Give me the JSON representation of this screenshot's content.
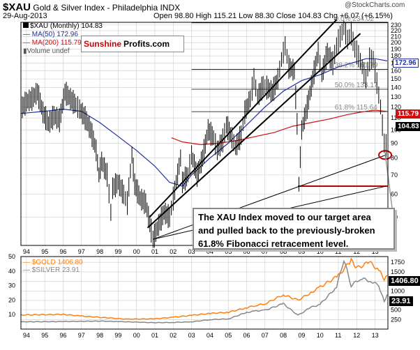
{
  "header": {
    "symbol": "$XAU",
    "name": "Gold & Silver Index - Philadelphia INDX",
    "date": "29-Aug-2013",
    "ohlc": "Open 98.80   High 115.21   Low 88.30   Close 104.83   Chg +6.07 (+6.15%)",
    "brand": "@StockCharts.com"
  },
  "legend": {
    "xau": "$XAU (Monthly) 104.83",
    "ma50": "MA(50) 172.96",
    "ma200": "MA(200) 115.79",
    "volume": "Volume undef",
    "gold": "$GOLD 1406.80",
    "silver": "$SILVER 23.91"
  },
  "logo": {
    "part1": "Sunshine",
    "part2": "Profits.com"
  },
  "callout": "The XAU Index moved to our target area and pulled back to the previously-broken 61.8% Fibonacci retracement level.",
  "tags": {
    "ma50": "172.96",
    "ma200": "115.79",
    "close": "104.83",
    "gold": "1406.80",
    "silver": "23.91"
  },
  "colors": {
    "ma50": "#2030a0",
    "ma200": "#d01010",
    "gold": "#ff7f0e",
    "silver": "#888888",
    "grid": "#cccccc",
    "target": "#c00000"
  },
  "chart_data": [
    {
      "type": "line",
      "title": "$XAU Gold & Silver Index - Philadelphia INDX (Monthly)",
      "y_scale": "log",
      "ylim": [
        40,
        235
      ],
      "y_ticks": [
        50,
        60,
        70,
        80,
        90,
        100,
        110,
        120,
        130,
        140,
        150,
        160,
        170,
        180,
        190,
        200,
        210,
        220,
        230
      ],
      "x_tick_labels": [
        "94",
        "95",
        "96",
        "97",
        "98",
        "99",
        "00",
        "01",
        "02",
        "03",
        "04",
        "05",
        "06",
        "07",
        "08",
        "09",
        "10",
        "11",
        "12",
        "13"
      ],
      "x_range": [
        1993.7,
        2013.7
      ],
      "grid": true,
      "series": [
        {
          "name": "$XAU (Monthly)",
          "style": "ohlc-bars",
          "points": [
            [
              1993.7,
              118
            ],
            [
              1994.0,
              125
            ],
            [
              1994.3,
              128
            ],
            [
              1994.6,
              135
            ],
            [
              1994.9,
              115
            ],
            [
              1995.2,
              105
            ],
            [
              1995.5,
              112
            ],
            [
              1995.8,
              108
            ],
            [
              1996.1,
              135
            ],
            [
              1996.4,
              128
            ],
            [
              1996.7,
              122
            ],
            [
              1996.9,
              118
            ],
            [
              1997.2,
              110
            ],
            [
              1997.5,
              100
            ],
            [
              1997.8,
              85
            ],
            [
              1997.95,
              70
            ],
            [
              1998.1,
              78
            ],
            [
              1998.4,
              70
            ],
            [
              1998.6,
              52
            ],
            [
              1998.7,
              63
            ],
            [
              1999.0,
              66
            ],
            [
              1999.3,
              60
            ],
            [
              1999.5,
              56
            ],
            [
              1999.75,
              82
            ],
            [
              1999.9,
              65
            ],
            [
              2000.2,
              58
            ],
            [
              2000.5,
              56
            ],
            [
              2000.8,
              45
            ],
            [
              2000.9,
              42
            ],
            [
              2001.2,
              47
            ],
            [
              2001.5,
              52
            ],
            [
              2001.8,
              50
            ],
            [
              2002.0,
              58
            ],
            [
              2002.4,
              80
            ],
            [
              2002.5,
              66
            ],
            [
              2002.8,
              70
            ],
            [
              2003.0,
              82
            ],
            [
              2003.3,
              70
            ],
            [
              2003.6,
              80
            ],
            [
              2003.9,
              100
            ],
            [
              2004.2,
              94
            ],
            [
              2004.4,
              85
            ],
            [
              2004.7,
              92
            ],
            [
              2004.9,
              104
            ],
            [
              2005.2,
              94
            ],
            [
              2005.4,
              87
            ],
            [
              2005.7,
              96
            ],
            [
              2005.9,
              115
            ],
            [
              2006.2,
              128
            ],
            [
              2006.4,
              150
            ],
            [
              2006.6,
              130
            ],
            [
              2006.9,
              142
            ],
            [
              2007.1,
              140
            ],
            [
              2007.4,
              135
            ],
            [
              2007.7,
              150
            ],
            [
              2007.9,
              175
            ],
            [
              2008.1,
              195
            ],
            [
              2008.3,
              165
            ],
            [
              2008.6,
              160
            ],
            [
              2008.75,
              105
            ],
            [
              2008.85,
              65
            ],
            [
              2009.0,
              100
            ],
            [
              2009.3,
              120
            ],
            [
              2009.6,
              150
            ],
            [
              2009.9,
              185
            ],
            [
              2010.1,
              155
            ],
            [
              2010.4,
              185
            ],
            [
              2010.7,
              170
            ],
            [
              2010.9,
              195
            ],
            [
              2011.1,
              210
            ],
            [
              2011.3,
              225
            ],
            [
              2011.5,
              205
            ],
            [
              2011.7,
              215
            ],
            [
              2011.9,
              190
            ],
            [
              2012.1,
              180
            ],
            [
              2012.3,
              165
            ],
            [
              2012.5,
              150
            ],
            [
              2012.7,
              175
            ],
            [
              2012.9,
              175
            ],
            [
              2013.1,
              145
            ],
            [
              2013.3,
              120
            ],
            [
              2013.5,
              90
            ],
            [
              2013.6,
              88
            ],
            [
              2013.66,
              104.83
            ]
          ]
        },
        {
          "name": "MA(50)",
          "points": [
            [
              1993.7,
              114
            ],
            [
              1995.0,
              116
            ],
            [
              1996.0,
              118
            ],
            [
              1997.0,
              116
            ],
            [
              1998.0,
              106
            ],
            [
              1999.0,
              95
            ],
            [
              2000.0,
              85
            ],
            [
              2001.0,
              75
            ],
            [
              2001.8,
              66
            ],
            [
              2002.5,
              64
            ],
            [
              2003.0,
              70
            ],
            [
              2004.0,
              80
            ],
            [
              2005.0,
              90
            ],
            [
              2006.0,
              104
            ],
            [
              2007.0,
              120
            ],
            [
              2008.0,
              136
            ],
            [
              2009.0,
              148
            ],
            [
              2010.0,
              155
            ],
            [
              2011.0,
              165
            ],
            [
              2012.0,
              172
            ],
            [
              2012.5,
              176
            ],
            [
              2013.0,
              176
            ],
            [
              2013.66,
              172.96
            ]
          ]
        },
        {
          "name": "MA(200)",
          "points": [
            [
              2001.9,
              94
            ],
            [
              2002.5,
              91
            ],
            [
              2003.5,
              89
            ],
            [
              2004.5,
              90
            ],
            [
              2005.5,
              92
            ],
            [
              2006.5,
              95
            ],
            [
              2007.5,
              98
            ],
            [
              2008.5,
              103
            ],
            [
              2009.5,
              106
            ],
            [
              2010.5,
              109
            ],
            [
              2011.5,
              113
            ],
            [
              2012.5,
              116
            ],
            [
              2013.0,
              117
            ],
            [
              2013.66,
              115.79
            ]
          ]
        }
      ],
      "annotations": {
        "fibonacci": [
          {
            "label": "0.0%",
            "value": 234.02
          },
          {
            "label": "38.2%",
            "value": 161.79
          },
          {
            "label": "50.0%",
            "value": 138.17
          },
          {
            "label": "61.8%",
            "value": 115.64
          }
        ],
        "target_level": 64,
        "trend_channel": "upper and lower rising trendlines from 2001 low",
        "support_lines": "two rising trendlines from 2000 low",
        "circle_at": [
          2013.55,
          82
        ]
      }
    },
    {
      "type": "line",
      "title": "$GOLD and $SILVER",
      "series": [
        {
          "name": "$GOLD",
          "axis": "right",
          "ylim": [
            0,
            1900
          ],
          "y_ticks": [
            250,
            500,
            750,
            1000,
            1250,
            1500,
            1750
          ],
          "points": [
            [
              1993.7,
              370
            ],
            [
              1996.0,
              385
            ],
            [
              1997.0,
              340
            ],
            [
              1999.5,
              260
            ],
            [
              2001.0,
              270
            ],
            [
              2002.0,
              310
            ],
            [
              2003.0,
              360
            ],
            [
              2004.0,
              410
            ],
            [
              2005.0,
              440
            ],
            [
              2006.0,
              560
            ],
            [
              2006.5,
              620
            ],
            [
              2007.0,
              660
            ],
            [
              2008.0,
              900
            ],
            [
              2008.8,
              760
            ],
            [
              2009.5,
              950
            ],
            [
              2010.0,
              1100
            ],
            [
              2011.0,
              1400
            ],
            [
              2011.7,
              1800
            ],
            [
              2012.0,
              1600
            ],
            [
              2012.7,
              1750
            ],
            [
              2013.2,
              1550
            ],
            [
              2013.5,
              1300
            ],
            [
              2013.66,
              1406.8
            ]
          ]
        },
        {
          "name": "$SILVER",
          "axis": "left",
          "ylim": [
            0,
            50
          ],
          "y_ticks": [
            10,
            20,
            30,
            40,
            50
          ],
          "points": [
            [
              1993.7,
              5.0
            ],
            [
              1996.0,
              5.2
            ],
            [
              1998.0,
              5.5
            ],
            [
              1999.0,
              5.2
            ],
            [
              2001.0,
              4.4
            ],
            [
              2002.0,
              4.6
            ],
            [
              2003.0,
              5.0
            ],
            [
              2004.0,
              6.5
            ],
            [
              2005.0,
              7.0
            ],
            [
              2006.0,
              11.5
            ],
            [
              2006.5,
              12.5
            ],
            [
              2007.0,
              13.0
            ],
            [
              2008.0,
              17.5
            ],
            [
              2008.8,
              9.5
            ],
            [
              2009.5,
              15.0
            ],
            [
              2010.0,
              17.0
            ],
            [
              2010.9,
              29.0
            ],
            [
              2011.3,
              48.0
            ],
            [
              2011.7,
              30.0
            ],
            [
              2012.2,
              35.0
            ],
            [
              2012.8,
              33.0
            ],
            [
              2013.2,
              30.0
            ],
            [
              2013.5,
              19.0
            ],
            [
              2013.66,
              23.91
            ]
          ]
        }
      ],
      "x_tick_labels": [
        "94",
        "95",
        "96",
        "97",
        "98",
        "99",
        "00",
        "01",
        "02",
        "03",
        "04",
        "05",
        "06",
        "07",
        "08",
        "09",
        "10",
        "11",
        "12",
        "13"
      ]
    }
  ]
}
